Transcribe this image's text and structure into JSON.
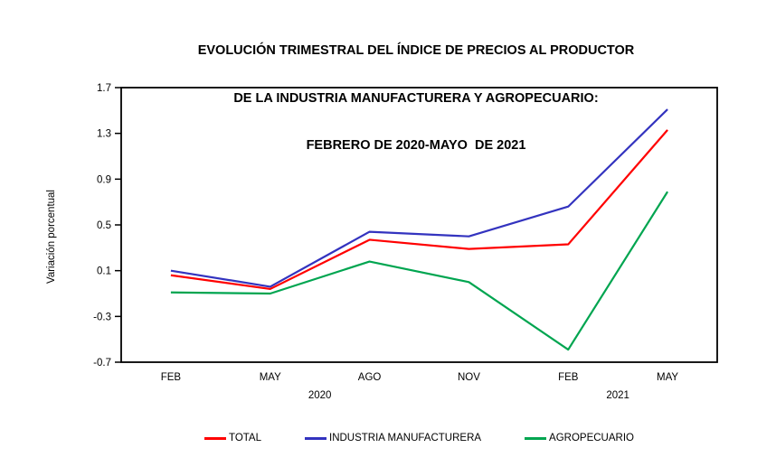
{
  "title": {
    "line1": "EVOLUCIÓN TRIMESTRAL DEL ÍNDICE DE PRECIOS AL PRODUCTOR",
    "line2": "DE LA INDUSTRIA MANUFACTURERA Y AGROPECUARIO:",
    "line3": "FEBRERO DE 2020-MAYO  DE 2021"
  },
  "chart_data": {
    "type": "line",
    "title": "EVOLUCIÓN TRIMESTRAL DEL ÍNDICE DE PRECIOS AL PRODUCTOR DE LA INDUSTRIA MANUFACTURERA Y AGROPECUARIO: FEBRERO DE 2020-MAYO DE 2021",
    "ylabel": "Variación porcentual",
    "xlabel": "",
    "categories": [
      "FEB",
      "MAY",
      "AGO",
      "NOV",
      "FEB",
      "MAY"
    ],
    "year_groups": [
      {
        "label": "2020",
        "between_ticks": [
          1,
          2
        ]
      },
      {
        "label": "2021",
        "between_ticks": [
          4,
          5
        ]
      }
    ],
    "y_ticks": [
      1.7,
      1.3,
      0.9,
      0.5,
      0.1,
      -0.3,
      -0.7
    ],
    "ylim": [
      -0.7,
      1.7
    ],
    "grid": false,
    "legend_position": "bottom",
    "axis_color": "#000000",
    "background_color": "#ffffff",
    "series": [
      {
        "name": "TOTAL",
        "color": "#ff0000",
        "values": [
          0.06,
          -0.06,
          0.37,
          0.29,
          0.33,
          1.33
        ]
      },
      {
        "name": "INDUSTRIA MANUFACTURERA",
        "color": "#3333bf",
        "values": [
          0.1,
          -0.04,
          0.44,
          0.4,
          0.66,
          1.51
        ]
      },
      {
        "name": "AGROPECUARIO",
        "color": "#00a550",
        "values": [
          -0.09,
          -0.1,
          0.18,
          0.0,
          -0.59,
          0.79
        ]
      }
    ]
  }
}
